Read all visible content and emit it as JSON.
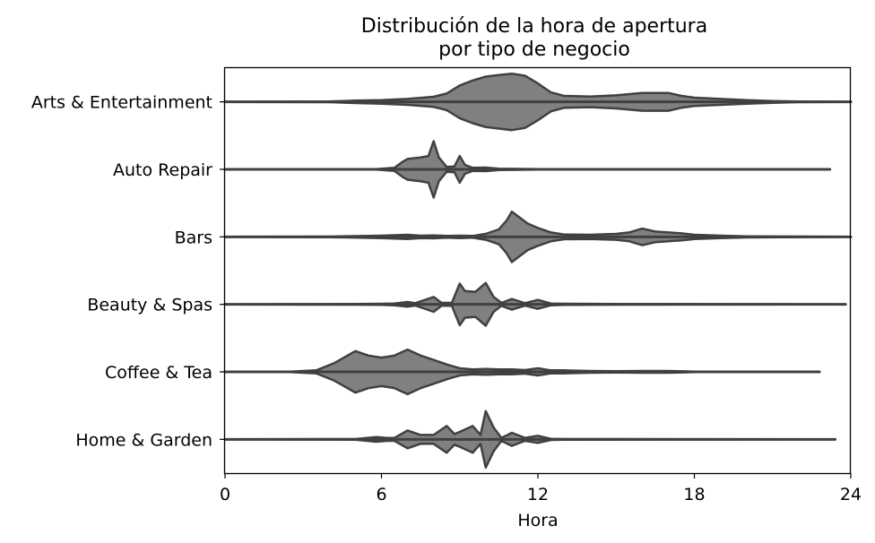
{
  "chart_data": {
    "type": "violin",
    "orientation": "horizontal",
    "title": [
      "Distribución de la hora de apertura",
      "por tipo de negocio"
    ],
    "xlabel": "Hora",
    "ylabel": "",
    "xlim": [
      0,
      24
    ],
    "xticks": [
      0,
      6,
      12,
      18,
      24
    ],
    "grid": false,
    "fill_color": "#808080",
    "edge_color": "#404040",
    "categories": [
      "Arts & Entertainment",
      "Auto Repair",
      "Bars",
      "Beauty & Spas",
      "Coffee & Tea",
      "Home & Garden"
    ],
    "series": [
      {
        "category": "Arts & Entertainment",
        "range": [
          0,
          24
        ],
        "density": [
          [
            0,
            0.0
          ],
          [
            4,
            0.01
          ],
          [
            5,
            0.04
          ],
          [
            6,
            0.06
          ],
          [
            7,
            0.1
          ],
          [
            8,
            0.17
          ],
          [
            8.5,
            0.28
          ],
          [
            9,
            0.55
          ],
          [
            9.5,
            0.72
          ],
          [
            10,
            0.85
          ],
          [
            10.5,
            0.9
          ],
          [
            11,
            0.95
          ],
          [
            11.5,
            0.88
          ],
          [
            12,
            0.62
          ],
          [
            12.5,
            0.32
          ],
          [
            13,
            0.2
          ],
          [
            14,
            0.18
          ],
          [
            15,
            0.22
          ],
          [
            16,
            0.3
          ],
          [
            17,
            0.3
          ],
          [
            17.5,
            0.2
          ],
          [
            18,
            0.14
          ],
          [
            19,
            0.1
          ],
          [
            20,
            0.06
          ],
          [
            21,
            0.03
          ],
          [
            22,
            0.01
          ],
          [
            24,
            0.0
          ]
        ]
      },
      {
        "category": "Auto Repair",
        "range": [
          0,
          23.2
        ],
        "density": [
          [
            0,
            0.0
          ],
          [
            5.8,
            0.01
          ],
          [
            6.5,
            0.05
          ],
          [
            6.8,
            0.25
          ],
          [
            7,
            0.35
          ],
          [
            7.5,
            0.4
          ],
          [
            7.8,
            0.45
          ],
          [
            8,
            0.95
          ],
          [
            8.2,
            0.4
          ],
          [
            8.5,
            0.08
          ],
          [
            8.8,
            0.1
          ],
          [
            9,
            0.45
          ],
          [
            9.2,
            0.15
          ],
          [
            9.5,
            0.05
          ],
          [
            10,
            0.06
          ],
          [
            10.5,
            0.02
          ],
          [
            12,
            0.01
          ],
          [
            23.2,
            0.0
          ]
        ]
      },
      {
        "category": "Bars",
        "range": [
          0,
          24
        ],
        "density": [
          [
            0,
            0.0
          ],
          [
            4,
            0.01
          ],
          [
            6,
            0.04
          ],
          [
            7,
            0.07
          ],
          [
            7.5,
            0.04
          ],
          [
            8,
            0.05
          ],
          [
            8.5,
            0.03
          ],
          [
            9,
            0.04
          ],
          [
            9.5,
            0.03
          ],
          [
            10,
            0.1
          ],
          [
            10.5,
            0.25
          ],
          [
            10.8,
            0.55
          ],
          [
            11,
            0.85
          ],
          [
            11.3,
            0.65
          ],
          [
            11.6,
            0.45
          ],
          [
            12,
            0.3
          ],
          [
            12.5,
            0.15
          ],
          [
            13,
            0.08
          ],
          [
            14,
            0.07
          ],
          [
            15,
            0.1
          ],
          [
            15.5,
            0.15
          ],
          [
            16,
            0.28
          ],
          [
            16.5,
            0.18
          ],
          [
            17,
            0.15
          ],
          [
            17.5,
            0.12
          ],
          [
            18,
            0.07
          ],
          [
            19,
            0.04
          ],
          [
            20,
            0.02
          ],
          [
            24,
            0.0
          ]
        ]
      },
      {
        "category": "Beauty & Spas",
        "range": [
          0,
          23.8
        ],
        "density": [
          [
            0,
            0.0
          ],
          [
            5,
            0.01
          ],
          [
            6,
            0.02
          ],
          [
            6.5,
            0.03
          ],
          [
            7,
            0.08
          ],
          [
            7.3,
            0.04
          ],
          [
            8,
            0.25
          ],
          [
            8.3,
            0.05
          ],
          [
            8.7,
            0.05
          ],
          [
            9,
            0.7
          ],
          [
            9.2,
            0.45
          ],
          [
            9.6,
            0.42
          ],
          [
            10,
            0.72
          ],
          [
            10.3,
            0.25
          ],
          [
            10.6,
            0.05
          ],
          [
            11,
            0.18
          ],
          [
            11.5,
            0.04
          ],
          [
            12,
            0.15
          ],
          [
            12.5,
            0.03
          ],
          [
            13,
            0.02
          ],
          [
            15,
            0.01
          ],
          [
            23.8,
            0.0
          ]
        ]
      },
      {
        "category": "Coffee & Tea",
        "range": [
          0,
          22.8
        ],
        "density": [
          [
            0,
            0.0
          ],
          [
            2.5,
            0.01
          ],
          [
            3.5,
            0.05
          ],
          [
            4.2,
            0.3
          ],
          [
            5,
            0.7
          ],
          [
            5.5,
            0.55
          ],
          [
            6,
            0.48
          ],
          [
            6.5,
            0.55
          ],
          [
            7,
            0.75
          ],
          [
            7.5,
            0.55
          ],
          [
            8,
            0.4
          ],
          [
            8.5,
            0.25
          ],
          [
            9,
            0.12
          ],
          [
            9.5,
            0.08
          ],
          [
            10,
            0.1
          ],
          [
            10.5,
            0.08
          ],
          [
            11,
            0.08
          ],
          [
            11.5,
            0.06
          ],
          [
            12,
            0.12
          ],
          [
            12.5,
            0.05
          ],
          [
            13,
            0.05
          ],
          [
            14,
            0.03
          ],
          [
            15,
            0.02
          ],
          [
            16,
            0.03
          ],
          [
            17,
            0.03
          ],
          [
            18,
            0.01
          ],
          [
            22.8,
            0.0
          ]
        ]
      },
      {
        "category": "Home & Garden",
        "range": [
          0,
          23.4
        ],
        "density": [
          [
            0,
            0.0
          ],
          [
            5,
            0.01
          ],
          [
            5.8,
            0.08
          ],
          [
            6.2,
            0.05
          ],
          [
            6.5,
            0.05
          ],
          [
            7,
            0.3
          ],
          [
            7.5,
            0.15
          ],
          [
            8,
            0.15
          ],
          [
            8.5,
            0.45
          ],
          [
            8.8,
            0.18
          ],
          [
            9,
            0.25
          ],
          [
            9.5,
            0.45
          ],
          [
            9.8,
            0.15
          ],
          [
            10,
            0.95
          ],
          [
            10.3,
            0.4
          ],
          [
            10.6,
            0.05
          ],
          [
            11,
            0.22
          ],
          [
            11.5,
            0.05
          ],
          [
            12,
            0.12
          ],
          [
            12.5,
            0.02
          ],
          [
            13,
            0.01
          ],
          [
            23.4,
            0.0
          ]
        ]
      }
    ]
  }
}
